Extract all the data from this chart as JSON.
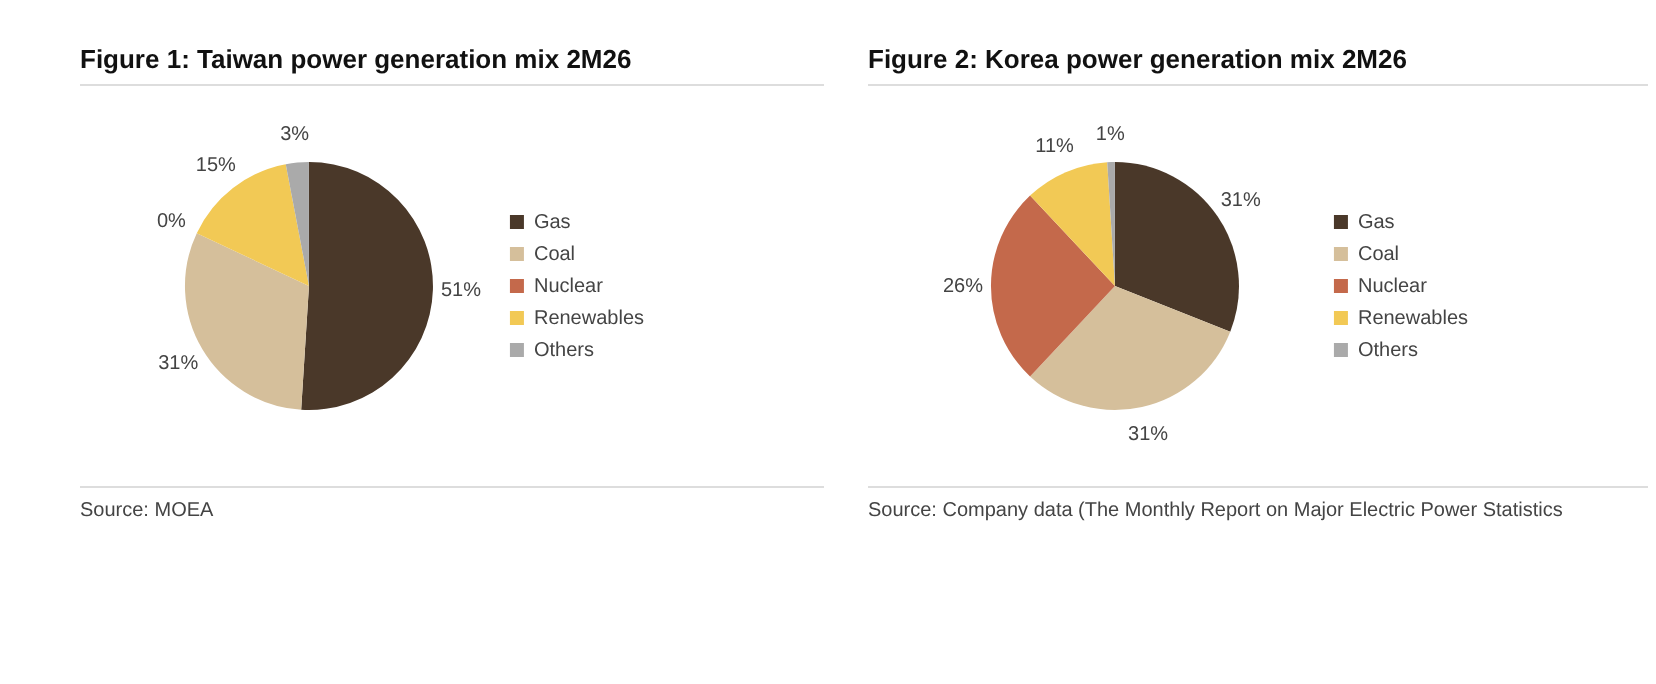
{
  "chart_data": [
    {
      "type": "pie",
      "title": "Figure 1: Taiwan power generation mix 2M26",
      "categories": [
        "Gas",
        "Coal",
        "Nuclear",
        "Renewables",
        "Others"
      ],
      "values": [
        51,
        31,
        0,
        15,
        3
      ],
      "value_labels": [
        "51%",
        "31%",
        "0%",
        "15%",
        "3%"
      ],
      "colors": [
        "#4a3829",
        "#d5bf9b",
        "#c4694b",
        "#f2c955",
        "#aaaaaa"
      ],
      "legend": "right",
      "annotations": [
        "Source: MOEA"
      ]
    },
    {
      "type": "pie",
      "title": "Figure 2: Korea power generation mix 2M26",
      "categories": [
        "Gas",
        "Coal",
        "Nuclear",
        "Renewables",
        "Others"
      ],
      "values": [
        31,
        31,
        26,
        11,
        1
      ],
      "value_labels": [
        "31%",
        "31%",
        "26%",
        "11%",
        "1%"
      ],
      "colors": [
        "#4a3829",
        "#d5bf9b",
        "#c4694b",
        "#f2c955",
        "#aaaaaa"
      ],
      "legend": "right",
      "annotations": [
        "Source: Company data (The Monthly Report on Major Electric Power Statistics"
      ]
    }
  ]
}
